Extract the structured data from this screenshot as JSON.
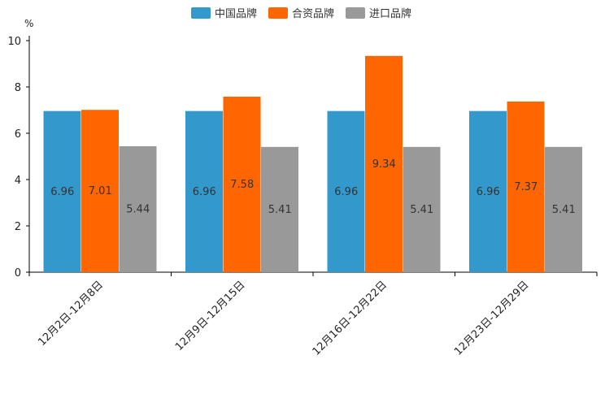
{
  "chart_data": {
    "type": "bar",
    "title": "",
    "xlabel": "",
    "ylabel": "%",
    "ylim": [
      0,
      10
    ],
    "yticks": [
      0,
      2,
      4,
      6,
      8,
      10
    ],
    "grid": false,
    "legend_position": "top-center",
    "categories": [
      "12月2日-12月8日",
      "12月9日-12月15日",
      "12月16日-12月22日",
      "12月23日-12月29日"
    ],
    "series": [
      {
        "name": "中国品牌",
        "color": "#3399cc",
        "values": [
          6.96,
          6.96,
          6.96,
          6.96
        ],
        "labels": [
          "6.96",
          "6.96",
          "6.96",
          "6.96"
        ]
      },
      {
        "name": "合资品牌",
        "color": "#ff6600",
        "values": [
          7.01,
          7.58,
          9.34,
          7.37
        ],
        "labels": [
          "7.01",
          "7.58",
          "9.34",
          "7.37"
        ]
      },
      {
        "name": "进口品牌",
        "color": "#999999",
        "values": [
          5.44,
          5.41,
          5.41,
          5.41
        ],
        "labels": [
          "5.44",
          "5.41",
          "5.41",
          "5.41"
        ]
      }
    ]
  }
}
